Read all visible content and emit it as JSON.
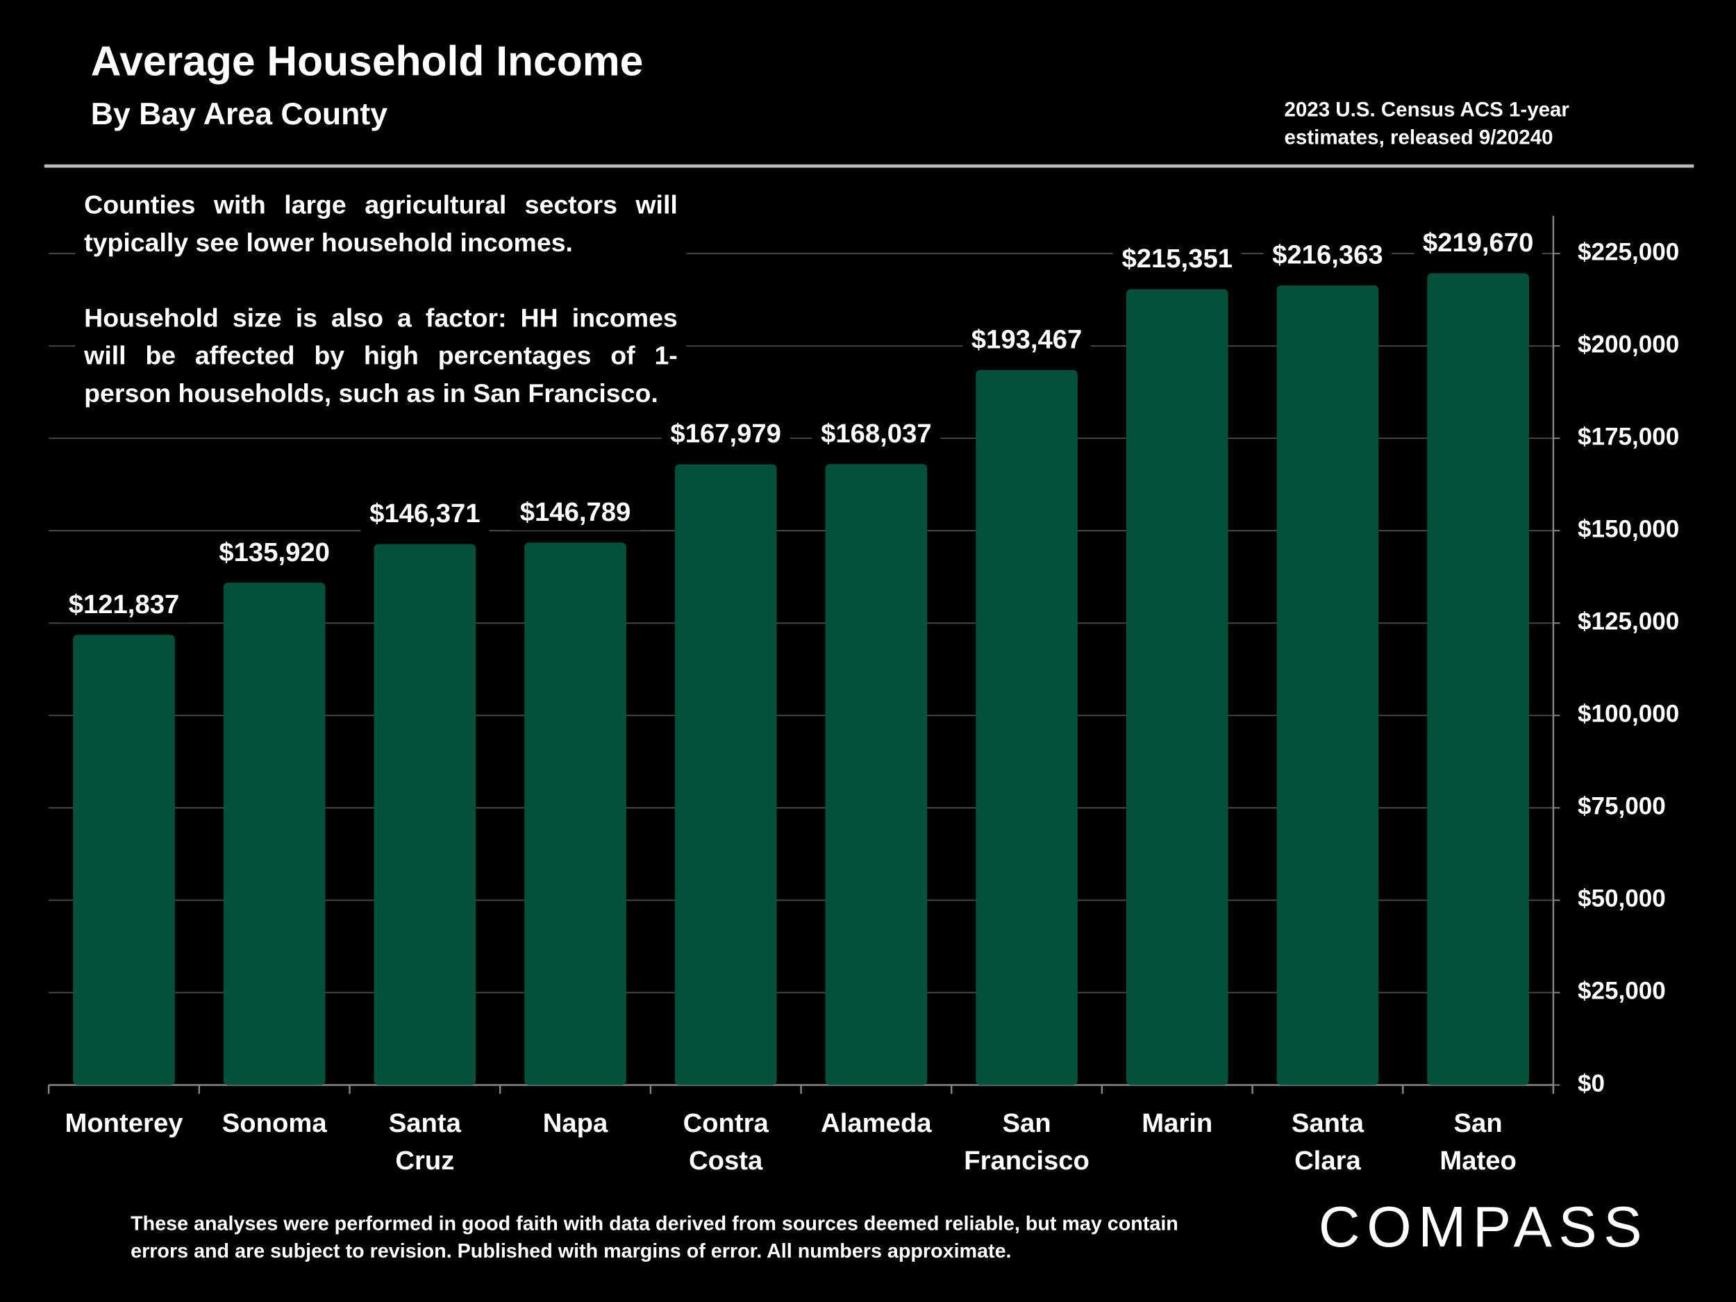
{
  "chart_data": {
    "type": "bar",
    "title": "Average Household Income",
    "subtitle": "By Bay Area County",
    "source": "2023 U.S. Census ACS 1-year estimates, released 9/20240",
    "annotation": [
      "Counties with large agricultural sectors will typically see lower household incomes.",
      "Household size is also a factor: HH incomes will be affected by high percentages of 1-person households, such as in San Francisco."
    ],
    "footnote": "These analyses were performed in good faith with data derived from sources deemed reliable, but may contain errors and are subject to revision.  Published with margins of error. All numbers approximate.",
    "logo": "COMPASS",
    "categories": [
      "Monterey",
      "Sonoma",
      "Santa Cruz",
      "Napa",
      "Contra Costa",
      "Alameda",
      "San Francisco",
      "Marin",
      "Santa Clara",
      "San Mateo"
    ],
    "values": [
      121837,
      135920,
      146371,
      146789,
      167979,
      168037,
      193467,
      215351,
      216363,
      219670
    ],
    "value_labels": [
      "$121,837",
      "$135,920",
      "$146,371",
      "$146,789",
      "$167,979",
      "$168,037",
      "$193,467",
      "$215,351",
      "$216,363",
      "$219,670"
    ],
    "color": "#03513b",
    "ylim": [
      0,
      225000
    ],
    "yticks": [
      {
        "value": 0,
        "label": "$0"
      },
      {
        "value": 25000,
        "label": "$25,000"
      },
      {
        "value": 50000,
        "label": "$50,000"
      },
      {
        "value": 75000,
        "label": "$75,000"
      },
      {
        "value": 100000,
        "label": "$100,000"
      },
      {
        "value": 125000,
        "label": "$125,000"
      },
      {
        "value": 150000,
        "label": "$150,000"
      },
      {
        "value": 175000,
        "label": "$175,000"
      },
      {
        "value": 200000,
        "label": "$200,000"
      },
      {
        "value": 225000,
        "label": "$225,000"
      }
    ],
    "y_axis_side": "right",
    "grid": true
  }
}
